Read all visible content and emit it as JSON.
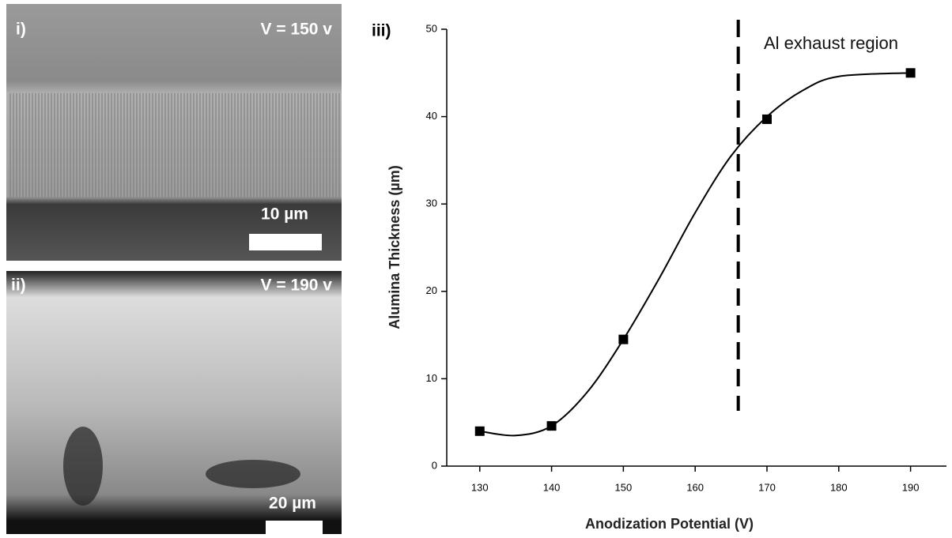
{
  "panels": [
    {
      "label": "i)",
      "voltage": "V = 150 v",
      "scale": "10 µm"
    },
    {
      "label": "ii)",
      "voltage": "V = 190 v",
      "scale": "20 µm"
    }
  ],
  "chart_data": {
    "type": "scatter",
    "label": "iii)",
    "x_label": "Anodization Potential (V)",
    "y_label": "Alumina Thickness (µm)",
    "x": [
      130,
      140,
      150,
      170,
      190
    ],
    "values": [
      4,
      4.6,
      14.5,
      39.7,
      45
    ],
    "color": "#000000",
    "fit": {
      "x": [
        130,
        135,
        140,
        145,
        150,
        155,
        160,
        165,
        170,
        175,
        180,
        190
      ],
      "values": [
        4,
        3.5,
        4.6,
        8.5,
        14.5,
        21.5,
        29,
        35.5,
        40,
        43,
        44.6,
        45
      ]
    },
    "threshold": {
      "x": 166,
      "label": "Al exhaust region"
    },
    "xlim": [
      125.4,
      195
    ],
    "ylim": [
      0,
      50
    ],
    "xticks": [
      130,
      140,
      150,
      160,
      170,
      180,
      190
    ],
    "yticks": [
      0,
      10,
      20,
      30,
      40,
      50
    ]
  }
}
